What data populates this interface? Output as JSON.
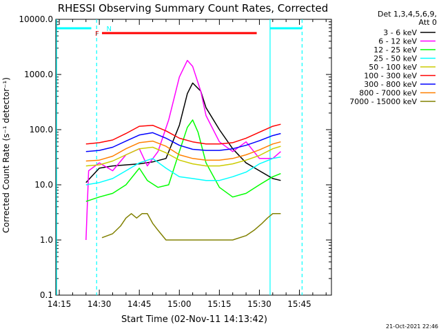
{
  "chart_data": {
    "type": "line",
    "title": "RHESSI Observing Summary Count Rates, Corrected",
    "xlabel": "Start Time (02-Nov-11 14:13:42)",
    "ylabel": "Corrected Count Rate (s⁻¹ detector⁻¹)",
    "y_scale": "log",
    "ylim": [
      0.1,
      10000
    ],
    "xlim": [
      "14:13:42",
      "15:57:00"
    ],
    "x_ticks": [
      "14:15",
      "14:30",
      "14:45",
      "15:00",
      "15:15",
      "15:30",
      "15:45"
    ],
    "y_ticks": [
      "0.1",
      "1.0",
      "10.0",
      "100.0",
      "1000.0",
      "10000.0"
    ],
    "detector_info": [
      "Det 1,3,4,5,6,9,",
      "Att 0"
    ],
    "timestamp": "21-Oct-2021 22:46",
    "grid": false,
    "legend_position": "right",
    "flags": [
      {
        "label": "N",
        "color": "#00ffff",
        "segments": [
          [
            "14:14",
            "14:27"
          ],
          [
            "15:34",
            "15:46"
          ]
        ]
      },
      {
        "label": "F",
        "color": "#ff0000",
        "segments": [
          [
            "14:31",
            "15:29"
          ]
        ]
      }
    ],
    "vertical_lines": [
      {
        "time": "14:14",
        "style": "solid"
      },
      {
        "time": "14:29",
        "style": "dashed"
      },
      {
        "time": "15:34",
        "style": "solid"
      },
      {
        "time": "15:46",
        "style": "dashed"
      }
    ],
    "series": [
      {
        "name": "3 - 6 keV",
        "color": "#000000",
        "points": [
          [
            "14:25",
            11
          ],
          [
            "14:30",
            20
          ],
          [
            "14:35",
            22
          ],
          [
            "14:40",
            23
          ],
          [
            "14:45",
            24
          ],
          [
            "14:50",
            26
          ],
          [
            "14:55",
            30
          ],
          [
            "15:00",
            120
          ],
          [
            "15:03",
            450
          ],
          [
            "15:05",
            700
          ],
          [
            "15:08",
            500
          ],
          [
            "15:10",
            250
          ],
          [
            "15:15",
            100
          ],
          [
            "15:20",
            45
          ],
          [
            "15:25",
            25
          ],
          [
            "15:30",
            18
          ],
          [
            "15:35",
            13
          ],
          [
            "15:38",
            12
          ]
        ]
      },
      {
        "name": "6 - 12 keV",
        "color": "#ff00ff",
        "points": [
          [
            "14:25",
            1
          ],
          [
            "14:26",
            18
          ],
          [
            "14:30",
            25
          ],
          [
            "14:35",
            18
          ],
          [
            "14:40",
            35
          ],
          [
            "14:45",
            45
          ],
          [
            "14:48",
            22
          ],
          [
            "14:52",
            40
          ],
          [
            "14:56",
            150
          ],
          [
            "15:00",
            900
          ],
          [
            "15:03",
            1800
          ],
          [
            "15:05",
            1400
          ],
          [
            "15:08",
            500
          ],
          [
            "15:10",
            180
          ],
          [
            "15:15",
            60
          ],
          [
            "15:20",
            40
          ],
          [
            "15:25",
            60
          ],
          [
            "15:30",
            30
          ],
          [
            "15:35",
            30
          ],
          [
            "15:38",
            40
          ]
        ]
      },
      {
        "name": "12 - 25 keV",
        "color": "#00ff00",
        "points": [
          [
            "14:25",
            5
          ],
          [
            "14:30",
            6
          ],
          [
            "14:35",
            7
          ],
          [
            "14:40",
            10
          ],
          [
            "14:45",
            20
          ],
          [
            "14:48",
            12
          ],
          [
            "14:52",
            9
          ],
          [
            "14:56",
            10
          ],
          [
            "15:00",
            40
          ],
          [
            "15:03",
            110
          ],
          [
            "15:05",
            150
          ],
          [
            "15:07",
            90
          ],
          [
            "15:10",
            25
          ],
          [
            "15:15",
            9
          ],
          [
            "15:20",
            6
          ],
          [
            "15:25",
            7
          ],
          [
            "15:30",
            10
          ],
          [
            "15:35",
            14
          ],
          [
            "15:38",
            16
          ]
        ]
      },
      {
        "name": "25 - 50 keV",
        "color": "#00ffff",
        "points": [
          [
            "14:25",
            10
          ],
          [
            "14:30",
            11
          ],
          [
            "14:35",
            13
          ],
          [
            "14:40",
            18
          ],
          [
            "14:45",
            25
          ],
          [
            "14:50",
            30
          ],
          [
            "14:55",
            20
          ],
          [
            "15:00",
            14
          ],
          [
            "15:05",
            13
          ],
          [
            "15:10",
            12
          ],
          [
            "15:15",
            12
          ],
          [
            "15:20",
            14
          ],
          [
            "15:25",
            17
          ],
          [
            "15:30",
            24
          ],
          [
            "15:35",
            30
          ],
          [
            "15:38",
            32
          ]
        ]
      },
      {
        "name": "50 - 100 keV",
        "color": "#cccc00",
        "points": [
          [
            "14:25",
            22
          ],
          [
            "14:30",
            23
          ],
          [
            "14:35",
            27
          ],
          [
            "14:40",
            35
          ],
          [
            "14:45",
            45
          ],
          [
            "14:50",
            48
          ],
          [
            "14:55",
            38
          ],
          [
            "15:00",
            28
          ],
          [
            "15:05",
            24
          ],
          [
            "15:10",
            22
          ],
          [
            "15:15",
            22
          ],
          [
            "15:20",
            24
          ],
          [
            "15:25",
            28
          ],
          [
            "15:30",
            34
          ],
          [
            "15:35",
            45
          ],
          [
            "15:38",
            50
          ]
        ]
      },
      {
        "name": "100 - 300 keV",
        "color": "#ff0000",
        "points": [
          [
            "14:25",
            55
          ],
          [
            "14:30",
            58
          ],
          [
            "14:35",
            65
          ],
          [
            "14:40",
            85
          ],
          [
            "14:45",
            115
          ],
          [
            "14:50",
            120
          ],
          [
            "14:55",
            95
          ],
          [
            "15:00",
            70
          ],
          [
            "15:05",
            60
          ],
          [
            "15:10",
            55
          ],
          [
            "15:15",
            55
          ],
          [
            "15:20",
            58
          ],
          [
            "15:25",
            70
          ],
          [
            "15:30",
            90
          ],
          [
            "15:35",
            115
          ],
          [
            "15:38",
            125
          ]
        ]
      },
      {
        "name": "300 - 800 keV",
        "color": "#0000ff",
        "points": [
          [
            "14:25",
            40
          ],
          [
            "14:30",
            42
          ],
          [
            "14:35",
            48
          ],
          [
            "14:40",
            62
          ],
          [
            "14:45",
            80
          ],
          [
            "14:50",
            88
          ],
          [
            "14:55",
            70
          ],
          [
            "15:00",
            52
          ],
          [
            "15:05",
            44
          ],
          [
            "15:10",
            42
          ],
          [
            "15:15",
            42
          ],
          [
            "15:20",
            45
          ],
          [
            "15:25",
            52
          ],
          [
            "15:30",
            63
          ],
          [
            "15:35",
            78
          ],
          [
            "15:38",
            85
          ]
        ]
      },
      {
        "name": "800 - 7000 keV",
        "color": "#ff8000",
        "points": [
          [
            "14:25",
            27
          ],
          [
            "14:30",
            28
          ],
          [
            "14:35",
            33
          ],
          [
            "14:40",
            45
          ],
          [
            "14:45",
            58
          ],
          [
            "14:50",
            62
          ],
          [
            "14:55",
            50
          ],
          [
            "15:00",
            35
          ],
          [
            "15:05",
            30
          ],
          [
            "15:10",
            28
          ],
          [
            "15:15",
            28
          ],
          [
            "15:20",
            30
          ],
          [
            "15:25",
            35
          ],
          [
            "15:30",
            43
          ],
          [
            "15:35",
            55
          ],
          [
            "15:38",
            60
          ]
        ]
      },
      {
        "name": "7000 - 15000 keV",
        "color": "#808000",
        "points": [
          [
            "14:31",
            1.1
          ],
          [
            "14:35",
            1.3
          ],
          [
            "14:38",
            1.8
          ],
          [
            "14:40",
            2.5
          ],
          [
            "14:42",
            3.0
          ],
          [
            "14:44",
            2.5
          ],
          [
            "14:46",
            3.0
          ],
          [
            "14:48",
            3.0
          ],
          [
            "14:50",
            2.0
          ],
          [
            "14:52",
            1.5
          ],
          [
            "14:55",
            1.0
          ],
          [
            "14:58",
            1.0
          ],
          [
            "15:20",
            1.0
          ],
          [
            "15:25",
            1.2
          ],
          [
            "15:28",
            1.5
          ],
          [
            "15:31",
            2.0
          ],
          [
            "15:33",
            2.5
          ],
          [
            "15:35",
            3.0
          ],
          [
            "15:38",
            3.0
          ]
        ]
      }
    ]
  }
}
